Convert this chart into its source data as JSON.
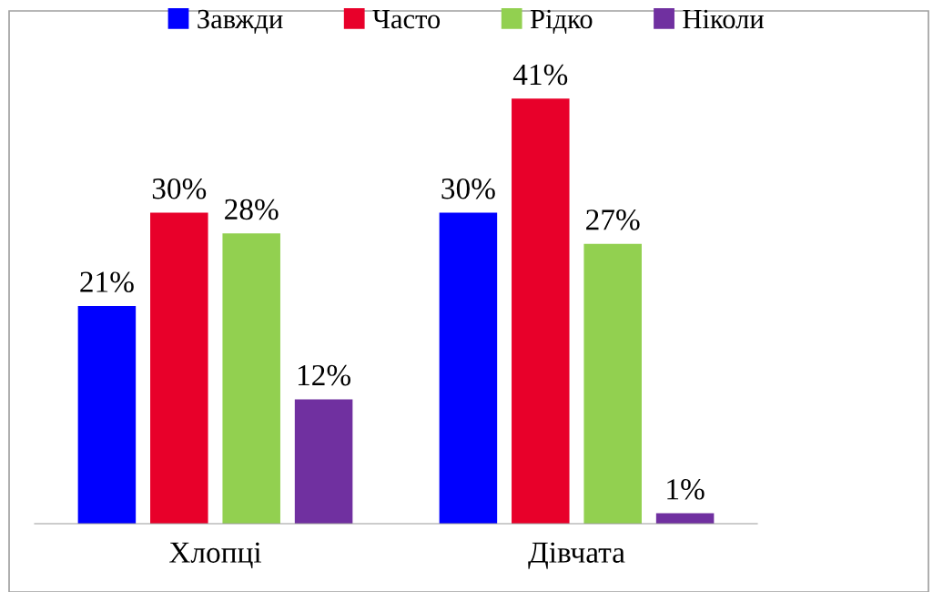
{
  "chart_data": {
    "type": "bar",
    "categories": [
      "Хлопці",
      "Дівчата"
    ],
    "series": [
      {
        "name": "Завжди",
        "color": "#0000ff",
        "values": [
          21,
          30
        ],
        "value_labels": [
          "21%",
          "30%"
        ]
      },
      {
        "name": "Часто",
        "color": "#e8002a",
        "values": [
          30,
          41
        ],
        "value_labels": [
          "30%",
          "41%"
        ]
      },
      {
        "name": "Рідко",
        "color": "#92d050",
        "values": [
          28,
          27
        ],
        "value_labels": [
          "28%",
          "27%"
        ]
      },
      {
        "name": "Ніколи",
        "color": "#7030a0",
        "values": [
          12,
          1
        ],
        "value_labels": [
          "12%",
          "1%"
        ]
      }
    ],
    "legend": "top"
  }
}
